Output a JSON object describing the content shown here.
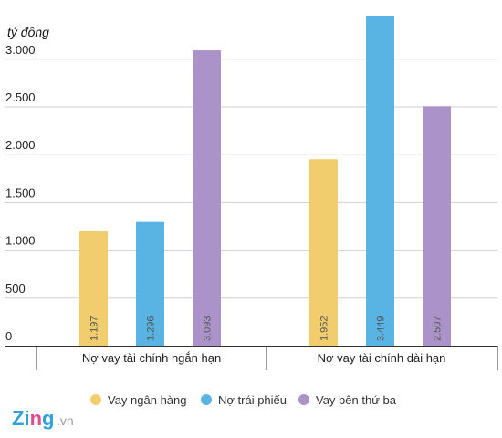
{
  "chart_data": {
    "type": "bar",
    "unit_label": "tỷ đồng",
    "categories": [
      "Nợ vay tài chính ngắn hạn",
      "Nợ vay tài chính dài hạn"
    ],
    "series": [
      {
        "name": "Vay ngân hàng",
        "color": "#f1cd6e",
        "values": [
          1197,
          1952
        ],
        "labels": [
          "1.197",
          "1.952"
        ]
      },
      {
        "name": "Nợ trái phiếu",
        "color": "#5ab4e3",
        "values": [
          1296,
          3449
        ],
        "labels": [
          "1.296",
          "3.449"
        ]
      },
      {
        "name": "Vay bên thứ ba",
        "color": "#ab92c9",
        "values": [
          3093,
          2507
        ],
        "labels": [
          "3.093",
          "2.507"
        ]
      }
    ],
    "yticks": [
      {
        "value": 0,
        "label": "0"
      },
      {
        "value": 500,
        "label": "500"
      },
      {
        "value": 1000,
        "label": "1.000"
      },
      {
        "value": 1500,
        "label": "1.500"
      },
      {
        "value": 2000,
        "label": "2.000"
      },
      {
        "value": 2500,
        "label": "2.500"
      },
      {
        "value": 3000,
        "label": "3.000"
      }
    ],
    "ylim": [
      0,
      3500
    ],
    "grid": true,
    "legend_position": "bottom"
  },
  "logo": {
    "brand": "Zing",
    "suffix": ".vn"
  }
}
